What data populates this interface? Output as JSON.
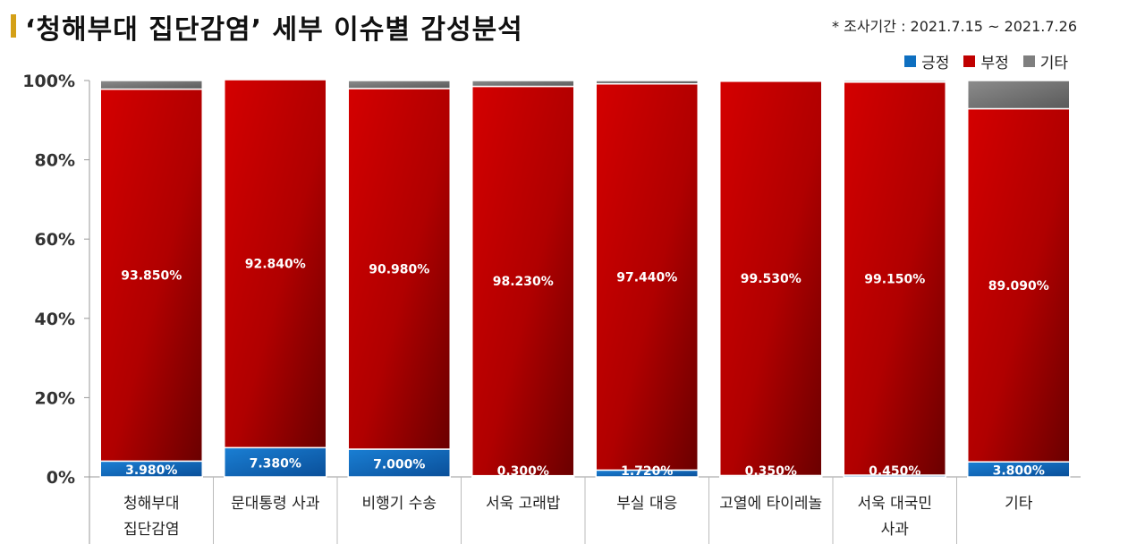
{
  "header": {
    "title": "‘청해부대 집단감염’ 세부 이슈별 감성분석",
    "period": "* 조사기간 : 2021.7.15 ~ 2021.7.26"
  },
  "colors": {
    "positive": "#0e6fc0",
    "negative": "#c00000",
    "other": "#7f7f7f"
  },
  "chart_data": {
    "type": "bar",
    "stacked": true,
    "ylim": [
      0,
      100
    ],
    "y_ticks": [
      "0%",
      "20%",
      "40%",
      "60%",
      "80%",
      "100%"
    ],
    "legend_position": "top-right",
    "categories": [
      [
        "청해부대",
        "집단감염"
      ],
      [
        "문대통령 사과"
      ],
      [
        "비행기 수송"
      ],
      [
        "서욱 고래밥"
      ],
      [
        "부실 대응"
      ],
      [
        "고열에 타이레놀"
      ],
      [
        "서욱 대국민",
        "사과"
      ],
      [
        "기타"
      ]
    ],
    "series": [
      {
        "name": "긍정",
        "values": [
          3.98,
          7.38,
          7.0,
          0.3,
          1.72,
          0.35,
          0.45,
          3.8
        ],
        "labels": [
          "3.980%",
          "7.380%",
          "7.000%",
          "0.300%",
          "1.720%",
          "0.350%",
          "0.450%",
          "3.800%"
        ]
      },
      {
        "name": "부정",
        "values": [
          93.85,
          92.84,
          90.98,
          98.23,
          97.44,
          99.53,
          99.15,
          89.09
        ],
        "labels": [
          "93.850%",
          "92.840%",
          "90.980%",
          "98.230%",
          "97.440%",
          "99.530%",
          "99.150%",
          "89.090%"
        ]
      },
      {
        "name": "기타",
        "values": [
          2.17,
          0.0,
          2.02,
          1.47,
          0.84,
          0.12,
          0.4,
          7.11
        ]
      }
    ]
  }
}
